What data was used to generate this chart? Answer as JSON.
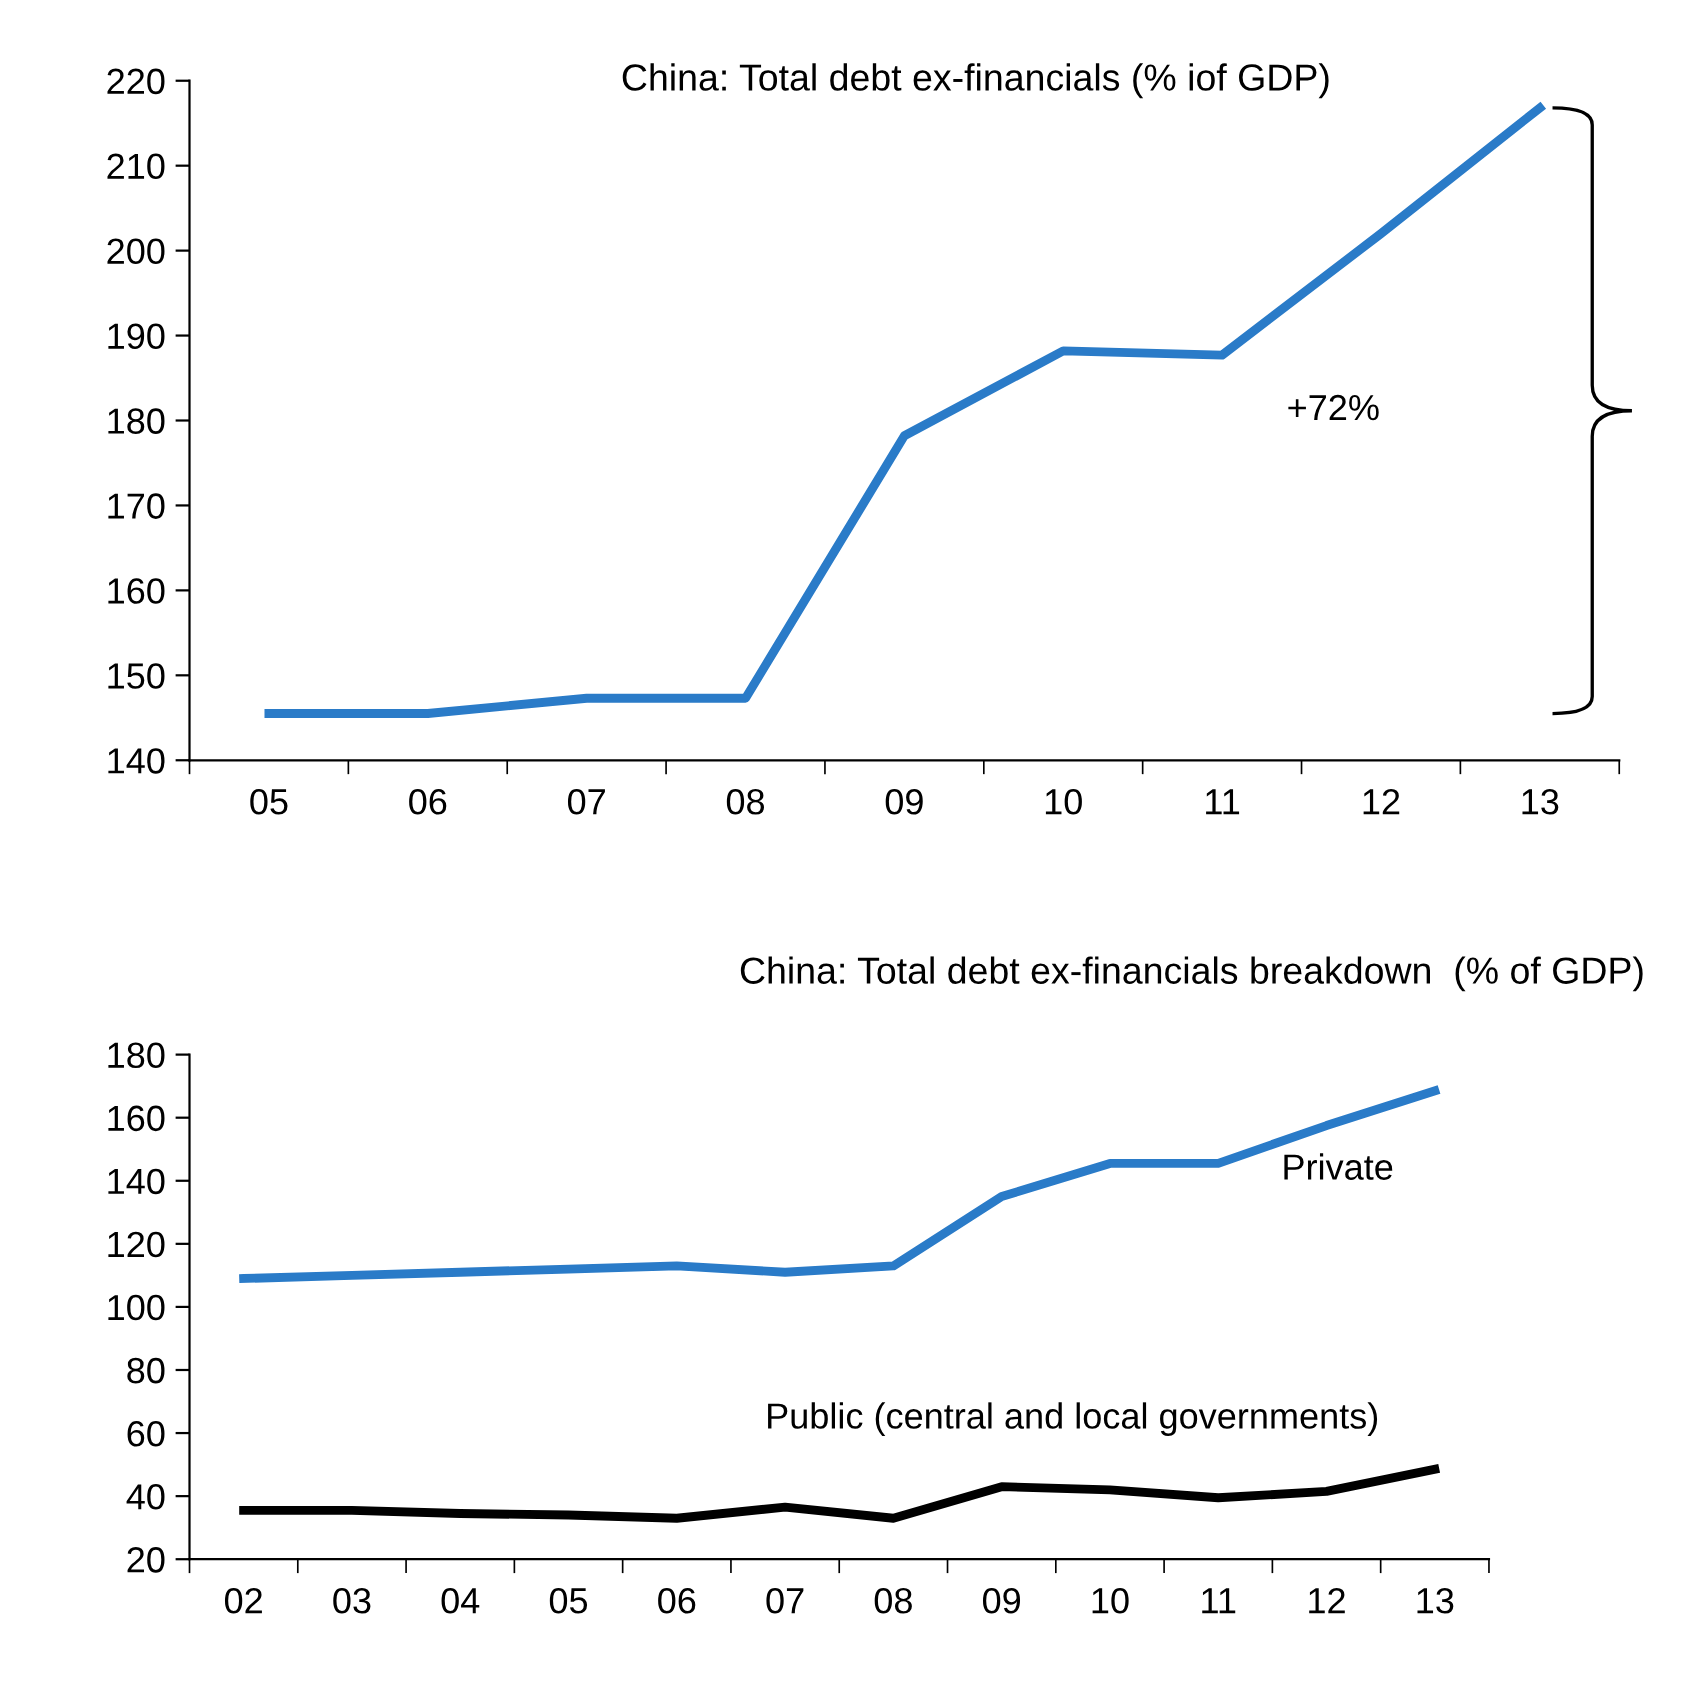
{
  "chart_data": [
    {
      "type": "line",
      "title": "China: Total debt ex-financials (% iof GDP)",
      "categories": [
        "05",
        "06",
        "07",
        "08",
        "09",
        "10",
        "11",
        "12",
        "13"
      ],
      "series": [
        {
          "color": "#2a7bc8",
          "values": [
            145.5,
            145.5,
            147.3,
            147.3,
            178.2,
            188.2,
            187.7,
            202,
            216.8
          ]
        }
      ],
      "ylim": [
        140,
        220
      ],
      "yticks": [
        140,
        150,
        160,
        170,
        180,
        190,
        200,
        210,
        220
      ],
      "grid": false,
      "legend": false,
      "annotations": [
        "+72%"
      ]
    },
    {
      "type": "line",
      "title": "China: Total debt ex-financials breakdown  (% of GDP)",
      "categories": [
        "02",
        "03",
        "04",
        "05",
        "06",
        "07",
        "08",
        "09",
        "10",
        "11",
        "12",
        "13"
      ],
      "series": [
        {
          "name": "Private",
          "color": "#2a7bc8",
          "values": [
            109,
            110,
            111,
            112,
            113,
            111,
            113,
            135,
            145.5,
            145.5,
            157.5,
            168.5
          ]
        },
        {
          "name": "Public (central and local governments)",
          "color": "#000000",
          "values": [
            35.5,
            35.5,
            34.5,
            34,
            33,
            36.5,
            33,
            43,
            42,
            39.5,
            41.5,
            48.5
          ]
        }
      ],
      "ylim": [
        20,
        180
      ],
      "yticks": [
        20,
        40,
        60,
        80,
        100,
        120,
        140,
        160,
        180
      ],
      "grid": false,
      "legend": false
    }
  ]
}
